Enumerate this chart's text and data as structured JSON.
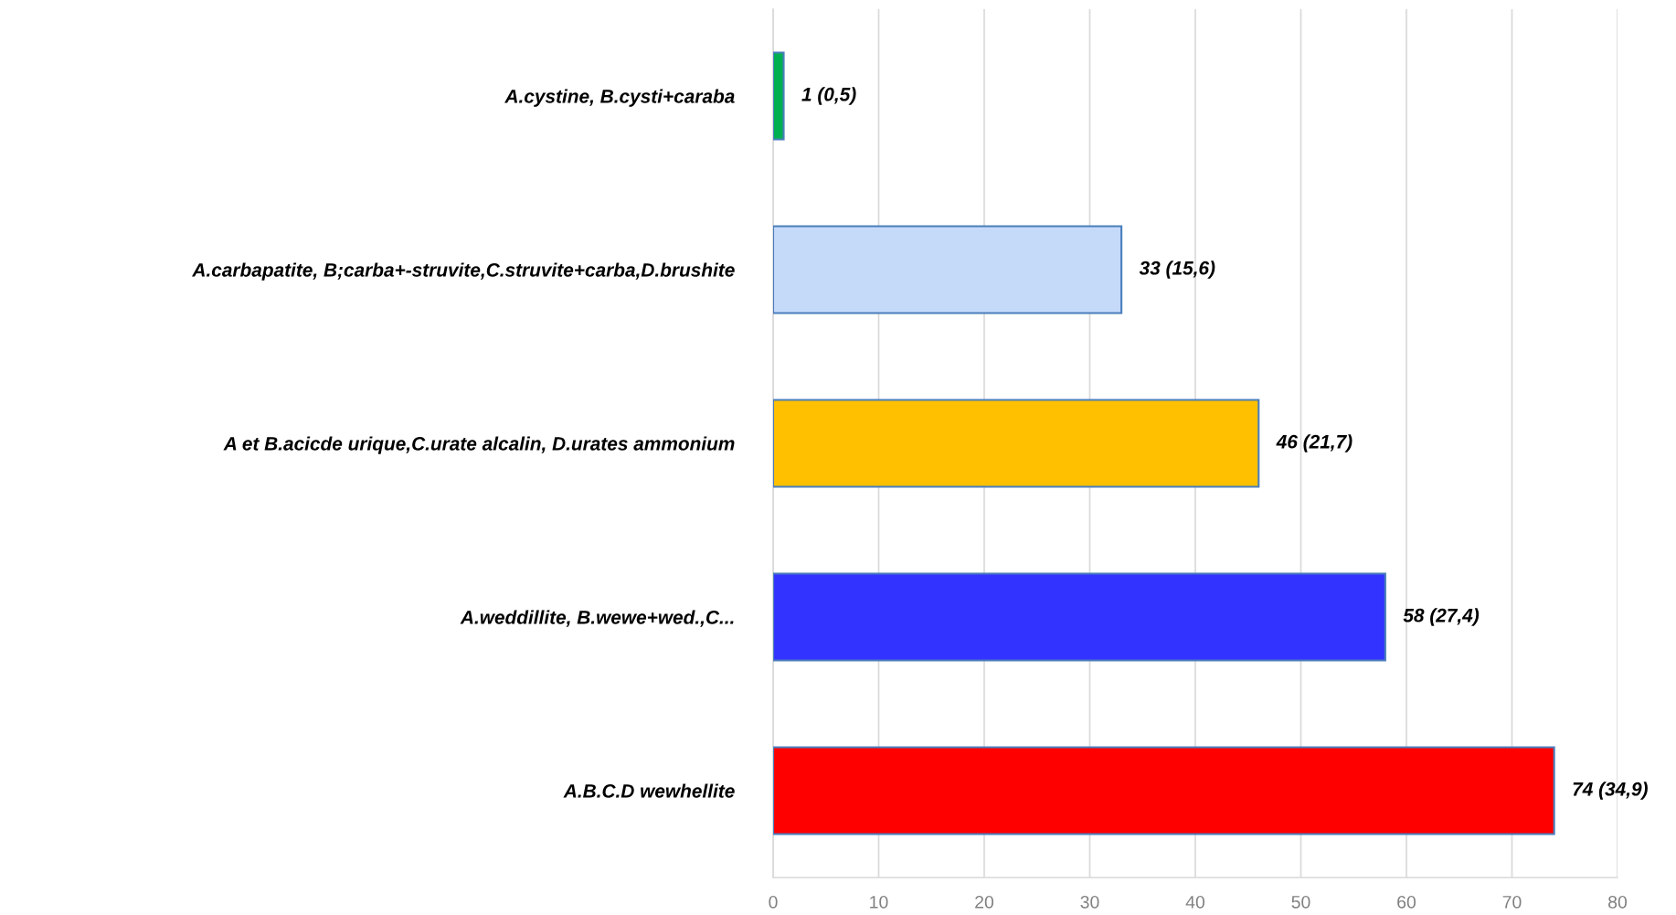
{
  "chart_data": {
    "type": "bar",
    "orientation": "horizontal",
    "categories": [
      "A.cystine, B.cysti+caraba",
      "A.carbapatite, B;carba+-struvite,C.struvite+carba,D.brushite",
      "A et B.acicde urique,C.urate alcalin, D.urates ammonium",
      "A.weddillite, B.wewe+wed.,C...",
      "A.B.C.D wewhellite"
    ],
    "values": [
      1,
      33,
      46,
      58,
      74
    ],
    "colors": [
      "#00b050",
      "#c5d9f9",
      "#ffc000",
      "#3333ff",
      "#ff0000"
    ],
    "value_labels": [
      "1 (0,5)",
      "33 (15,6)",
      "46 (21,7)",
      "58 (27,4)",
      "74 (34,9)"
    ],
    "xlim": [
      0,
      80
    ],
    "xticks": [
      0,
      10,
      20,
      30,
      40,
      50,
      60,
      70,
      80
    ],
    "grid": "x"
  }
}
